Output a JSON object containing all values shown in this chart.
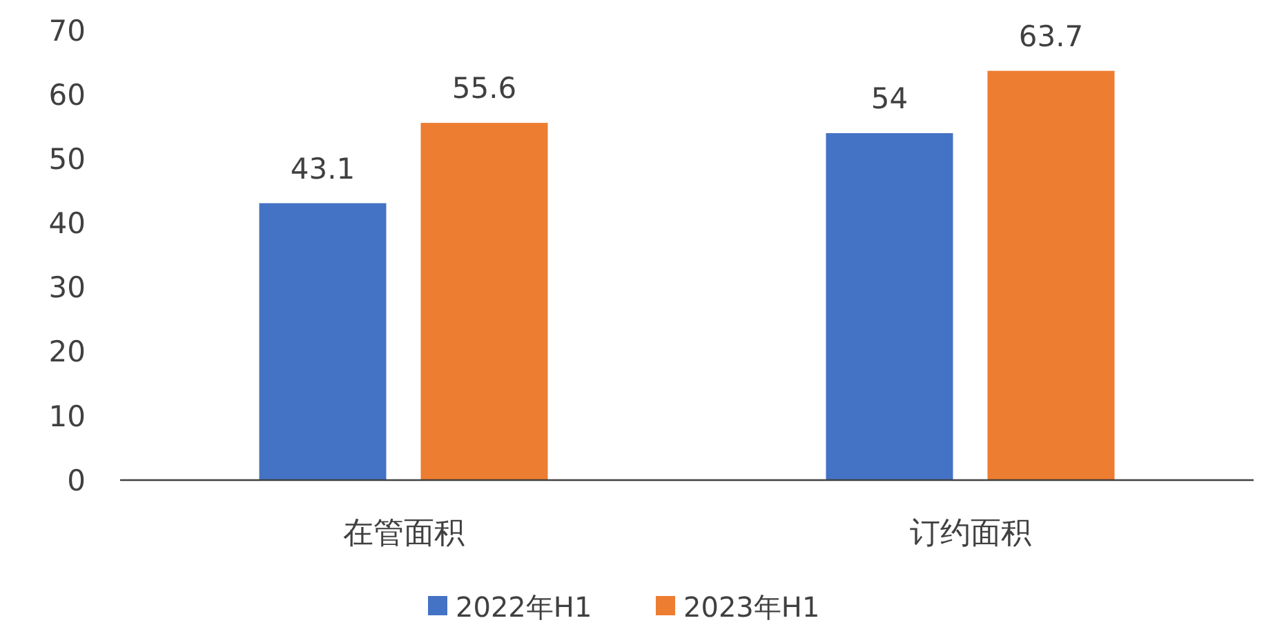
{
  "chart_data": {
    "type": "bar",
    "categories": [
      "在管面积",
      "订约面积"
    ],
    "series": [
      {
        "name": "2022年H1",
        "color": "#4472c4",
        "values": [
          43.1,
          54
        ]
      },
      {
        "name": "2023年H1",
        "color": "#ed7d31",
        "values": [
          55.6,
          63.7
        ]
      }
    ],
    "ylim": [
      0,
      70
    ],
    "yticks": [
      0,
      10,
      20,
      30,
      40,
      50,
      60,
      70
    ],
    "grid": false,
    "legend": "bottom",
    "data_labels": true
  }
}
